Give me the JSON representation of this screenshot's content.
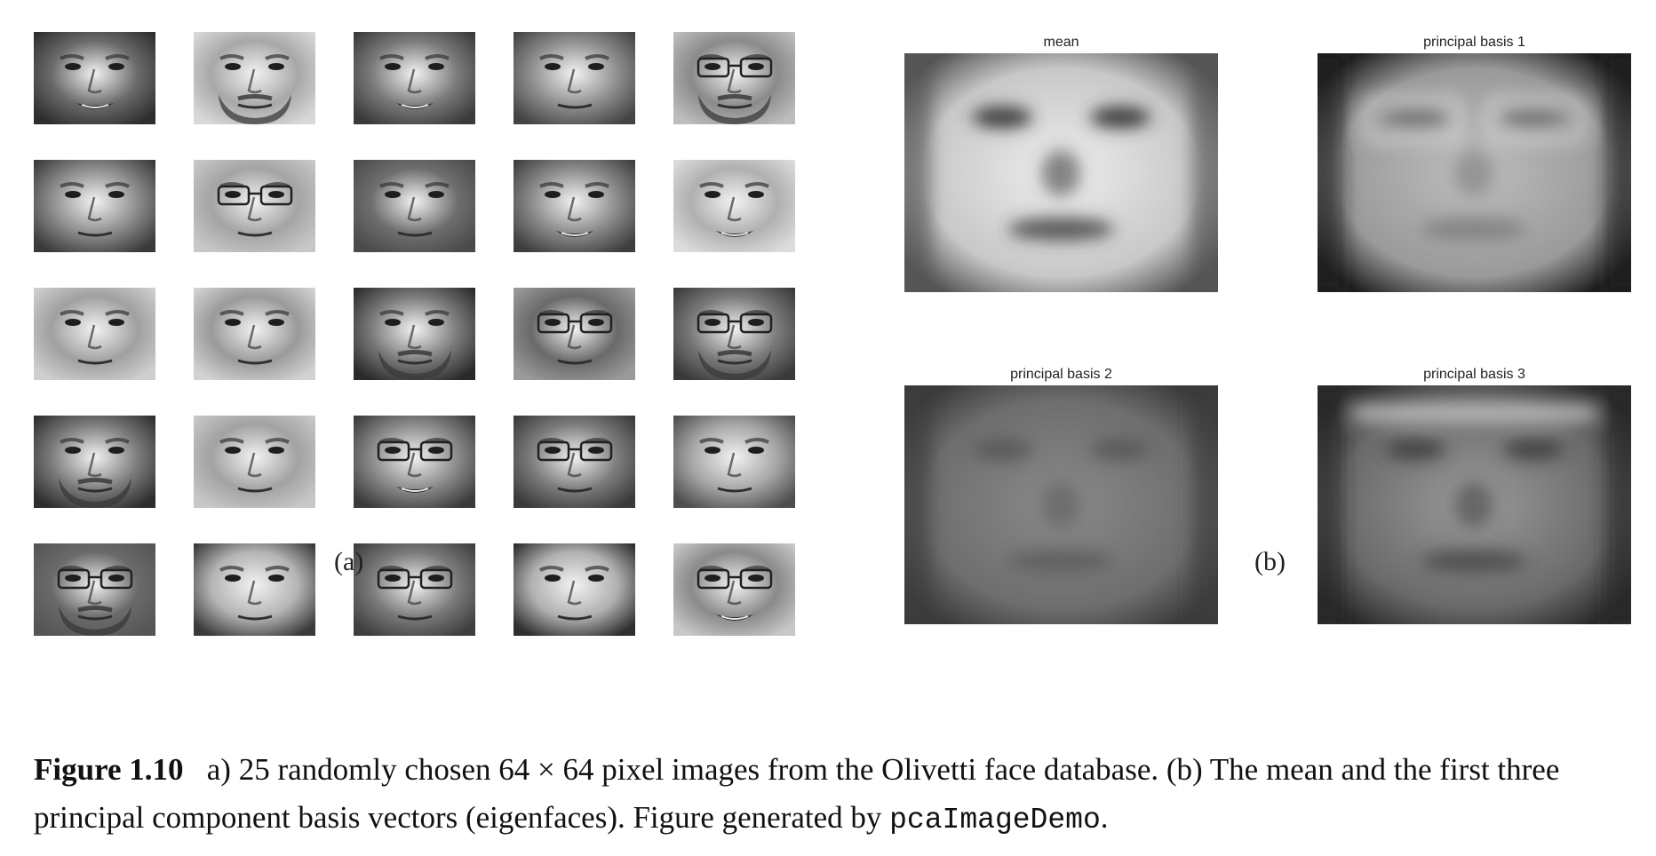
{
  "panel_a": {
    "label": "(a)",
    "faces": [
      {
        "id": "f1",
        "tone": "#6a6a6a",
        "hair": "#2e2e2e",
        "glasses": false,
        "beard": false,
        "smile": true
      },
      {
        "id": "f2",
        "tone": "#a8a8a8",
        "hair": "#d8d8d8",
        "glasses": false,
        "beard": true,
        "smile": false
      },
      {
        "id": "f3",
        "tone": "#7a7a7a",
        "hair": "#3a3a3a",
        "glasses": false,
        "beard": false,
        "smile": true
      },
      {
        "id": "f4",
        "tone": "#8e8e8e",
        "hair": "#444444",
        "glasses": false,
        "beard": false,
        "smile": false
      },
      {
        "id": "f5",
        "tone": "#8a8a8a",
        "hair": "#bdbdbd",
        "glasses": true,
        "beard": true,
        "smile": false
      },
      {
        "id": "f6",
        "tone": "#8c8c8c",
        "hair": "#3a3a3a",
        "glasses": false,
        "beard": false,
        "smile": false
      },
      {
        "id": "f7",
        "tone": "#a4a4a4",
        "hair": "#c8c8c8",
        "glasses": true,
        "beard": false,
        "smile": false
      },
      {
        "id": "f8",
        "tone": "#6e6e6e",
        "hair": "#4a4a4a",
        "glasses": false,
        "beard": false,
        "smile": false
      },
      {
        "id": "f9",
        "tone": "#8a8a8a",
        "hair": "#3e3e3e",
        "glasses": false,
        "beard": false,
        "smile": true
      },
      {
        "id": "f10",
        "tone": "#b0b0b0",
        "hair": "#dcdcdc",
        "glasses": false,
        "beard": false,
        "smile": true
      },
      {
        "id": "f11",
        "tone": "#a0a0a0",
        "hair": "#cfcfcf",
        "glasses": false,
        "beard": false,
        "smile": false
      },
      {
        "id": "f12",
        "tone": "#9a9a9a",
        "hair": "#d2d2d2",
        "glasses": false,
        "beard": false,
        "smile": false
      },
      {
        "id": "f13",
        "tone": "#7a7a7a",
        "hair": "#2a2a2a",
        "glasses": false,
        "beard": true,
        "smile": false
      },
      {
        "id": "f14",
        "tone": "#6a6a6a",
        "hair": "#9a9a9a",
        "glasses": true,
        "beard": false,
        "smile": false
      },
      {
        "id": "f15",
        "tone": "#7a7a7a",
        "hair": "#3a3a3a",
        "glasses": true,
        "beard": true,
        "smile": false
      },
      {
        "id": "f16",
        "tone": "#7c7c7c",
        "hair": "#2e2e2e",
        "glasses": false,
        "beard": true,
        "smile": false
      },
      {
        "id": "f17",
        "tone": "#a2a2a2",
        "hair": "#c8c8c8",
        "glasses": false,
        "beard": false,
        "smile": false
      },
      {
        "id": "f18",
        "tone": "#8a8a8a",
        "hair": "#3a3a3a",
        "glasses": true,
        "beard": false,
        "smile": true
      },
      {
        "id": "f19",
        "tone": "#7c7c7c",
        "hair": "#3a3a3a",
        "glasses": true,
        "beard": false,
        "smile": false
      },
      {
        "id": "f20",
        "tone": "#a6a6a6",
        "hair": "#4e4e4e",
        "glasses": false,
        "beard": false,
        "smile": false
      },
      {
        "id": "f21",
        "tone": "#6a6a6a",
        "hair": "#555555",
        "glasses": true,
        "beard": true,
        "smile": false
      },
      {
        "id": "f22",
        "tone": "#b4b4b4",
        "hair": "#3a3a3a",
        "glasses": false,
        "beard": false,
        "smile": false
      },
      {
        "id": "f23",
        "tone": "#7a7a7a",
        "hair": "#3e3e3e",
        "glasses": true,
        "beard": false,
        "smile": false
      },
      {
        "id": "f24",
        "tone": "#b0b0b0",
        "hair": "#2e2e2e",
        "glasses": false,
        "beard": false,
        "smile": false
      },
      {
        "id": "f25",
        "tone": "#8a8a8a",
        "hair": "#c8c8c8",
        "glasses": true,
        "beard": false,
        "smile": true
      }
    ]
  },
  "panel_b": {
    "label": "(b)",
    "images": [
      {
        "title": "mean",
        "bg": "#c8c8c8",
        "face": "#ededed",
        "feature": "#3a3a3a",
        "edge": "#555555"
      },
      {
        "title": "principal basis 1",
        "bg": "#9a9a9a",
        "face": "#bdbdbd",
        "feature": "#7a7a7a",
        "edge": "#1e1e1e"
      },
      {
        "title": "principal basis 2",
        "bg": "#6e6e6e",
        "face": "#8a8a8a",
        "feature": "#5a5a5a",
        "edge": "#3a3a3a"
      },
      {
        "title": "principal basis 3",
        "bg": "#6a6a6a",
        "face": "#9a9a9a",
        "feature": "#444444",
        "edge": "#2a2a2a"
      }
    ]
  },
  "caption": {
    "figure_label": "Figure 1.10",
    "text_1": "a) 25 randomly chosen 64 × 64 pixel images from the Olivetti face database. (b) The mean and the first three principal component basis vectors (eigenfaces). Figure generated by ",
    "code": "pcaImageDemo",
    "text_2": "."
  }
}
